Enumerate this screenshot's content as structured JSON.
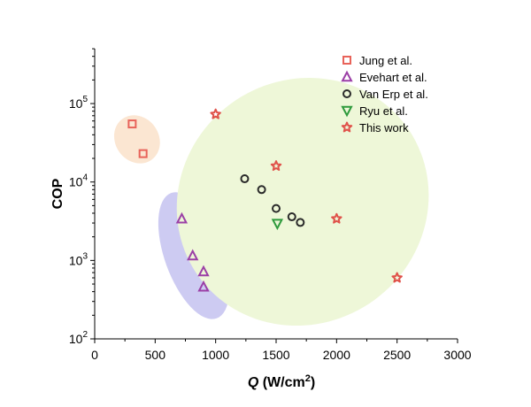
{
  "chart_data": {
    "type": "scatter",
    "xlabel_var": "Q",
    "xlabel_unit_prefix": " (W/cm",
    "xlabel_unit_sup": "2",
    "xlabel_unit_suffix": ")",
    "ylabel": "COP",
    "xlim": [
      0,
      3000
    ],
    "ylim_log10": [
      2,
      5.7
    ],
    "y_scale": "log",
    "x_ticks": [
      0,
      500,
      1000,
      1500,
      2000,
      2500,
      3000
    ],
    "y_ticks": [
      {
        "base": "10",
        "exp": "2",
        "log10": 2
      },
      {
        "base": "10",
        "exp": "3",
        "log10": 3
      },
      {
        "base": "10",
        "exp": "4",
        "log10": 4
      },
      {
        "base": "10",
        "exp": "5",
        "log10": 5
      }
    ],
    "legend_position": "top-right",
    "series": [
      {
        "name": "Jung et al.",
        "marker": "square",
        "color": "#e8635a",
        "points": [
          [
            310,
            55000
          ],
          [
            400,
            23000
          ]
        ]
      },
      {
        "name": "Evehart et al.",
        "marker": "triangle-up",
        "color": "#9b3fa6",
        "points": [
          [
            720,
            3400
          ],
          [
            810,
            1150
          ],
          [
            900,
            720
          ],
          [
            900,
            460
          ]
        ]
      },
      {
        "name": "Van Erp et al.",
        "marker": "circle",
        "color": "#2a2a2a",
        "points": [
          [
            1240,
            11000
          ],
          [
            1380,
            8000
          ],
          [
            1500,
            4600
          ],
          [
            1630,
            3600
          ],
          [
            1700,
            3050
          ]
        ]
      },
      {
        "name": "Ryu et al.",
        "marker": "triangle-down",
        "color": "#2e9a3c",
        "points": [
          [
            1510,
            2950
          ]
        ]
      },
      {
        "name": "This work",
        "marker": "star",
        "color": "#e0524a",
        "points": [
          [
            1000,
            73000
          ],
          [
            1500,
            16000
          ],
          [
            2000,
            3400
          ],
          [
            2500,
            600
          ]
        ]
      }
    ],
    "regions": [
      {
        "name": "jung-region",
        "color": "#fbe6d2",
        "cx": 350,
        "cy": 35000,
        "rx": 180,
        "ry_log10": 0.32,
        "angle": -35
      },
      {
        "name": "evehart-region",
        "color": "#cdcbf2",
        "cx": 820,
        "cy": 1150,
        "rx": 240,
        "ry_log10": 0.85,
        "angle": -20
      },
      {
        "name": "this-work-region",
        "color": "#eef7d8",
        "cx": 1720,
        "cy": 5600,
        "rx": 1060,
        "ry_log10": 1.55,
        "angle": -36
      }
    ]
  }
}
